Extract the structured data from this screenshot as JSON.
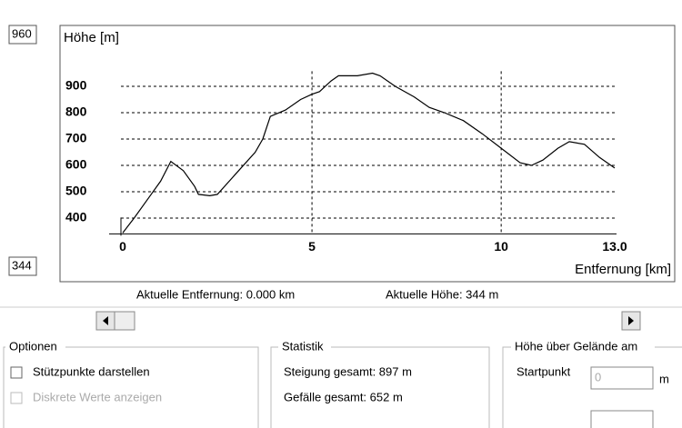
{
  "chart_data": {
    "type": "line",
    "y_axis_label": "Höhe [m]",
    "x_axis_label": "Entfernung [km]",
    "x": [
      0,
      0.3,
      0.7,
      1.0,
      1.27,
      1.6,
      1.9,
      2.0,
      2.3,
      2.5,
      3.0,
      3.5,
      3.7,
      3.9,
      4.3,
      4.7,
      5.0,
      5.2,
      5.5,
      5.7,
      6.2,
      6.6,
      6.8,
      7.2,
      7.7,
      8.1,
      8.5,
      9.0,
      9.5,
      10.0,
      10.5,
      10.8,
      11.1,
      11.5,
      11.8,
      12.2,
      12.6,
      13.0
    ],
    "series": [
      {
        "color": "#000000",
        "values": [
          344,
          400,
          480,
          540,
          615,
          580,
          520,
          490,
          485,
          490,
          570,
          650,
          700,
          786,
          810,
          850,
          870,
          880,
          920,
          940,
          940,
          950,
          940,
          900,
          860,
          820,
          800,
          770,
          720,
          665,
          610,
          600,
          620,
          665,
          690,
          680,
          630,
          590
        ]
      }
    ],
    "xlim": [
      0,
      13
    ],
    "xticks": [
      0,
      5,
      10,
      {
        "value": 13,
        "label": "13.0"
      }
    ],
    "ylim": [
      340,
      1040
    ],
    "yticks": [
      400,
      500,
      600,
      700,
      800,
      900
    ],
    "grid": true,
    "y_max_box": "960",
    "y_min_box": "344"
  },
  "ui": {
    "current_distance": "Aktuelle Entfernung: 0.000 km",
    "current_height": "Aktuelle Höhe: 344 m",
    "options": {
      "title": "Optionen",
      "items": [
        "Stützpunkte darstellen",
        "Diskrete Werte anzeigen"
      ]
    },
    "statistics": {
      "title": "Statistik",
      "items": [
        "Steigung gesamt: 897 m",
        "Gefälle gesamt: 652 m"
      ]
    },
    "height": {
      "title": "Höhe über Gelände am",
      "label": "Startpunkt",
      "value": "0",
      "unit": "m"
    }
  }
}
